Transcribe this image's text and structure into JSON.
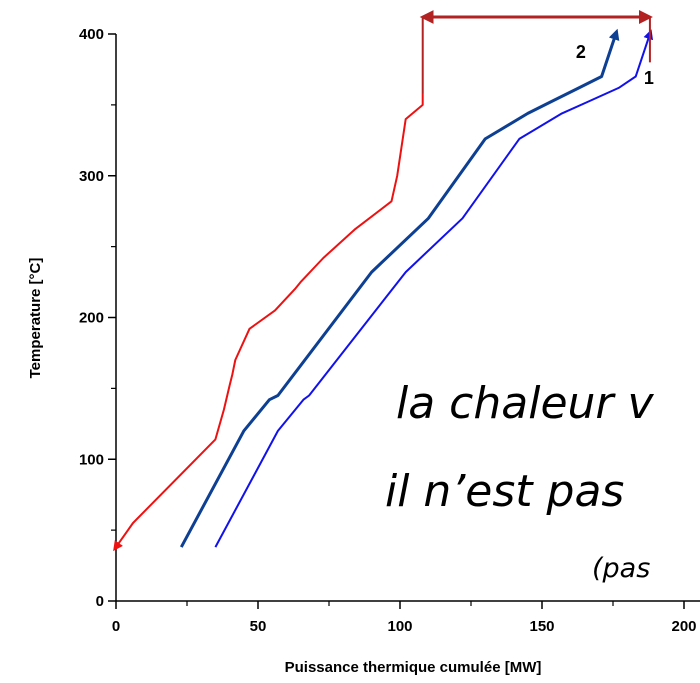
{
  "chart_data": {
    "type": "line",
    "title": "",
    "xlabel": "Puissance thermique cumulée [MW]",
    "ylabel": "Temperature [°C]",
    "xlim": [
      0,
      200
    ],
    "ylim": [
      0,
      400
    ],
    "x_ticks": [
      0,
      50,
      100,
      150,
      200
    ],
    "x_tick_labels": [
      "0",
      "50",
      "100",
      "150",
      "200"
    ],
    "y_ticks": [
      0,
      100,
      200,
      300,
      400
    ],
    "y_tick_labels": [
      "0",
      "100",
      "200",
      "300",
      "400"
    ],
    "grid": false,
    "series": [
      {
        "color": "#ee1111",
        "x": [
          108,
          108,
          102,
          99,
          97,
          84,
          73,
          65,
          63,
          56,
          47,
          42,
          41,
          40,
          38,
          35,
          6,
          0
        ],
        "y": [
          358,
          350,
          340,
          300,
          282,
          262,
          242,
          225,
          220,
          205,
          192,
          170,
          160,
          152,
          135,
          114,
          55,
          38
        ]
      },
      {
        "label": "2",
        "color": "#0d3f93",
        "x": [
          23,
          45,
          54,
          57,
          90,
          110,
          130,
          145,
          153,
          163,
          171,
          176
        ],
        "y": [
          38,
          120,
          142,
          145,
          232,
          270,
          326,
          344,
          352,
          362,
          370,
          400
        ]
      },
      {
        "label": "1",
        "color": "#1111ee",
        "x": [
          35,
          57,
          66,
          68,
          102,
          122,
          142,
          157,
          166,
          177,
          183,
          188
        ],
        "y": [
          38,
          120,
          142,
          145,
          232,
          270,
          326,
          344,
          352,
          362,
          370,
          400
        ]
      }
    ],
    "annotations": [
      {
        "type": "double-arrow",
        "color": "#b22222",
        "x_from": 108,
        "x_to": 188,
        "y": 412
      }
    ]
  },
  "overlay_text": {
    "line1": "la chaleur v",
    "line2": "il n’est pas",
    "line3": "(pas"
  }
}
